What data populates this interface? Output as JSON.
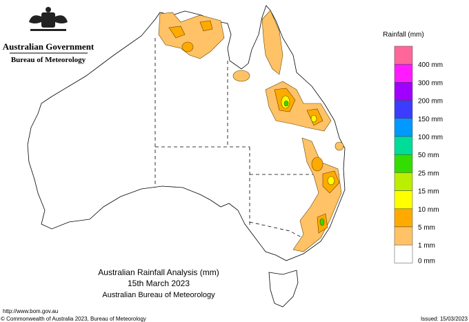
{
  "header": {
    "agency": "Australian Government",
    "bureau": "Bureau of Meteorology"
  },
  "map": {
    "title": "Australian Rainfall Analysis (mm)",
    "date": "15th March 2023",
    "source": "Australian Bureau of Meteorology"
  },
  "legend": {
    "title": "Rainfall (mm)",
    "items": [
      {
        "label": "400 mm",
        "color": "#ff1aff"
      },
      {
        "label": "300 mm",
        "color": "#a000ff"
      },
      {
        "label": "200 mm",
        "color": "#3c3cff"
      },
      {
        "label": "150 mm",
        "color": "#0099ff"
      },
      {
        "label": "100 mm",
        "color": "#00dd99"
      },
      {
        "label": "50 mm",
        "color": "#33dd00"
      },
      {
        "label": "25 mm",
        "color": "#bbee00"
      },
      {
        "label": "15 mm",
        "color": "#ffff00"
      },
      {
        "label": "10 mm",
        "color": "#ffaa00"
      },
      {
        "label": "5 mm",
        "color": "#ffc266"
      },
      {
        "label": "1 mm",
        "color": "#ffffff"
      },
      {
        "label": "0 mm",
        "color": "#ffffff"
      }
    ],
    "top_color": "#ff6699"
  },
  "footer": {
    "url": "http://www.bom.gov.au",
    "copyright": "© Commonwealth of Australia 2023, Bureau of Meteorology",
    "issued": "Issued: 15/03/2023"
  }
}
